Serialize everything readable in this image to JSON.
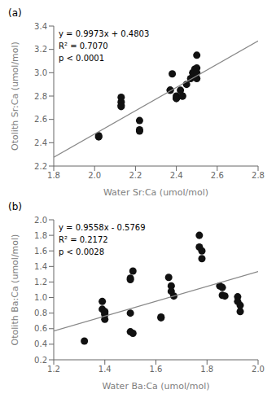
{
  "chart_data": [
    {
      "type": "scatter",
      "title": "(a)",
      "xlabel": "Water Sr:Ca (umol/mol)",
      "ylabel": "Otolith Sr:Ca (umol/mol)",
      "annotations": [
        "y = 0.9973x + 0.4803",
        "R² = 0.7070",
        "p < 0.0001"
      ],
      "grid": false,
      "xlim": [
        1.8,
        2.8
      ],
      "ylim": [
        2.2,
        3.4
      ],
      "xticks": [
        1.8,
        {
          "value": 2.0,
          "label": "2.0"
        },
        2.2,
        2.4,
        2.6,
        2.8
      ],
      "yticks": [
        2.2,
        2.4,
        2.6,
        2.8,
        {
          "value": 3.0,
          "label": "3.0"
        },
        3.2,
        3.4
      ],
      "series": [
        {
          "type": "scatter",
          "color": "#111111",
          "x": [
            2.02,
            2.02,
            2.13,
            2.13,
            2.13,
            2.13,
            2.22,
            2.22,
            2.22,
            2.37,
            2.37,
            2.38,
            2.4,
            2.4,
            2.4,
            2.42,
            2.43,
            2.43,
            2.45,
            2.47,
            2.48,
            2.49,
            2.49,
            2.5,
            2.5,
            2.5,
            2.5
          ],
          "values": [
            2.45,
            2.46,
            2.75,
            2.72,
            2.71,
            2.79,
            2.59,
            2.51,
            2.5,
            2.85,
            2.85,
            2.99,
            2.8,
            2.78,
            2.78,
            2.85,
            2.8,
            2.8,
            2.9,
            2.95,
            3.0,
            2.98,
            3.03,
            3.04,
            3.0,
            3.15,
            2.95
          ]
        },
        {
          "type": "line",
          "color": "#888888",
          "x": [
            1.8,
            2.8
          ],
          "values": [
            2.27544,
            3.27274
          ]
        }
      ]
    },
    {
      "type": "scatter",
      "title": "(b)",
      "xlabel": "Water Ba:Ca (umol/mol)",
      "ylabel": "Otolith Ba:Ca (umol/mol)",
      "annotations": [
        "y = 0.9558x - 0.5769",
        "R² = 0.2172",
        "p < 0.0028"
      ],
      "grid": false,
      "xlim": [
        1.2,
        2.0
      ],
      "ylim": [
        0.2,
        2.0
      ],
      "xticks": [
        1.2,
        1.4,
        1.6,
        1.8,
        {
          "value": 2.0,
          "label": "2.0"
        }
      ],
      "yticks": [
        0.2,
        0.4,
        0.6,
        0.8,
        {
          "value": 1.0,
          "label": "1.0"
        },
        1.2,
        1.4,
        1.6,
        1.8,
        {
          "value": 2.0,
          "label": "2.0"
        }
      ],
      "series": [
        {
          "type": "scatter",
          "color": "#111111",
          "x": [
            1.32,
            1.39,
            1.39,
            1.4,
            1.4,
            1.4,
            1.4,
            1.5,
            1.5,
            1.5,
            1.5,
            1.51,
            1.51,
            1.62,
            1.62,
            1.65,
            1.66,
            1.66,
            1.67,
            1.77,
            1.77,
            1.78,
            1.78,
            1.85,
            1.86,
            1.86,
            1.87,
            1.92,
            1.92,
            1.93,
            1.93
          ],
          "values": [
            0.44,
            0.95,
            0.85,
            0.82,
            0.8,
            0.78,
            0.72,
            1.25,
            1.23,
            0.8,
            0.56,
            1.34,
            0.54,
            0.75,
            0.74,
            1.26,
            1.15,
            1.08,
            1.02,
            1.8,
            1.65,
            1.6,
            1.5,
            1.15,
            1.13,
            1.03,
            1.02,
            1.01,
            0.95,
            0.9,
            0.82
          ]
        },
        {
          "type": "line",
          "color": "#888888",
          "x": [
            1.2,
            2.0
          ],
          "values": [
            0.57006,
            1.3347
          ]
        }
      ]
    }
  ]
}
